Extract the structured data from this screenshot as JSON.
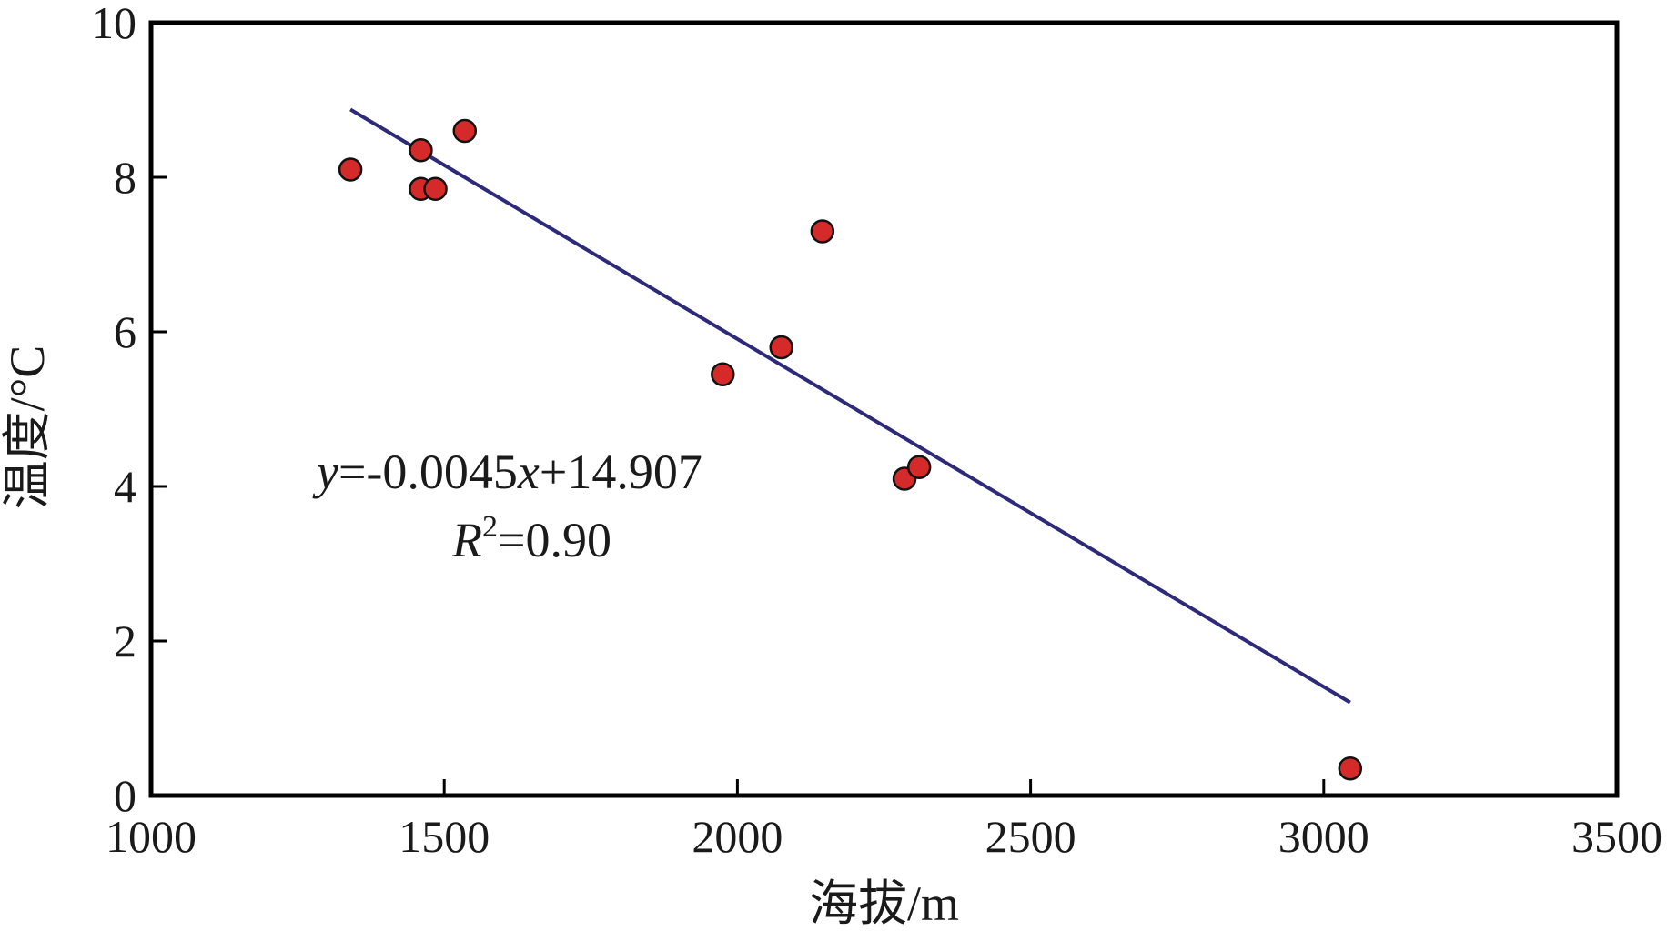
{
  "chart_data": {
    "type": "scatter",
    "xlabel": "海拔/m",
    "ylabel": "温度/°C",
    "xlim": [
      1000,
      3500
    ],
    "ylim": [
      0,
      10
    ],
    "xticks": [
      1000,
      1500,
      2000,
      2500,
      3000,
      3500
    ],
    "yticks": [
      0,
      2,
      4,
      6,
      8,
      10
    ],
    "grid": false,
    "point_color": "#d42a2a",
    "line_color": "#2e2a7a",
    "points": [
      {
        "x": 1340,
        "y": 8.1
      },
      {
        "x": 1460,
        "y": 8.35
      },
      {
        "x": 1460,
        "y": 7.85
      },
      {
        "x": 1485,
        "y": 7.85
      },
      {
        "x": 1535,
        "y": 8.6
      },
      {
        "x": 1975,
        "y": 5.45
      },
      {
        "x": 2075,
        "y": 5.8
      },
      {
        "x": 2145,
        "y": 7.3
      },
      {
        "x": 2285,
        "y": 4.1
      },
      {
        "x": 2310,
        "y": 4.25
      },
      {
        "x": 3045,
        "y": 0.35
      }
    ],
    "fit": {
      "x_start": 1340,
      "x_end": 3045,
      "slope": -0.0045,
      "intercept": 14.907
    },
    "annotation": {
      "equation": {
        "y_var": "y",
        "part1": "=-0.0045",
        "x_var": "x",
        "part2": "+14.907"
      },
      "r2": {
        "r_var": "R",
        "sup": "2",
        "value": "=0.90"
      }
    }
  }
}
